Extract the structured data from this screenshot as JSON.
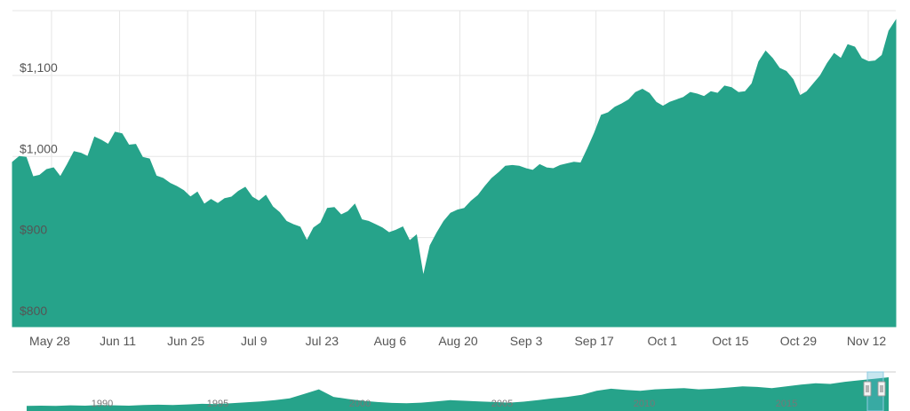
{
  "chart_data": {
    "type": "area",
    "title": "",
    "xlabel": "",
    "ylabel": "",
    "colors": {
      "series": "#26a38a",
      "grid": "#e6e6e6",
      "navigator": "#26a38a",
      "handle": "#5bb8d1"
    },
    "x_ticks": [
      "May 28",
      "Jun 11",
      "Jun 25",
      "Jul 9",
      "Jul 23",
      "Aug 6",
      "Aug 20",
      "Sep 3",
      "Sep 17",
      "Oct 1",
      "Oct 15",
      "Oct 29",
      "Nov 12"
    ],
    "y_ticks": [
      "$800",
      "$900",
      "$1,000",
      "$1,100"
    ],
    "y_tick_values": [
      800,
      900,
      1000,
      1100
    ],
    "ylim": [
      790,
      1180
    ],
    "grid": true,
    "series": [
      {
        "values": [
          993,
          1000,
          999,
          975,
          977,
          984,
          986,
          975,
          990,
          1006,
          1004,
          1000,
          1024,
          1020,
          1015,
          1030,
          1028,
          1014,
          1015,
          999,
          997,
          976,
          973,
          967,
          963,
          958,
          950,
          956,
          941,
          947,
          942,
          948,
          950,
          957,
          962,
          950,
          945,
          952,
          938,
          931,
          920,
          916,
          913,
          896,
          912,
          918,
          936,
          937,
          928,
          932,
          941,
          922,
          920,
          916,
          912,
          906,
          909,
          913,
          896,
          903,
          852,
          890,
          906,
          920,
          930,
          934,
          936,
          945,
          952,
          963,
          973,
          980,
          988,
          989,
          988,
          985,
          983,
          990,
          986,
          985,
          989,
          991,
          993,
          992,
          1010,
          1029,
          1051,
          1054,
          1061,
          1065,
          1070,
          1079,
          1083,
          1078,
          1067,
          1062,
          1067,
          1070,
          1073,
          1079,
          1077,
          1074,
          1080,
          1078,
          1087,
          1085,
          1079,
          1080,
          1090,
          1117,
          1130,
          1121,
          1109,
          1105,
          1095,
          1075,
          1080,
          1090,
          1100,
          1115,
          1127,
          1121,
          1138,
          1135,
          1121,
          1117,
          1118,
          1125,
          1155,
          1168
        ]
      }
    ],
    "navigator": {
      "year_labels": [
        "1990",
        "1995",
        "2000",
        "2005",
        "2010",
        "2015"
      ]
    }
  }
}
